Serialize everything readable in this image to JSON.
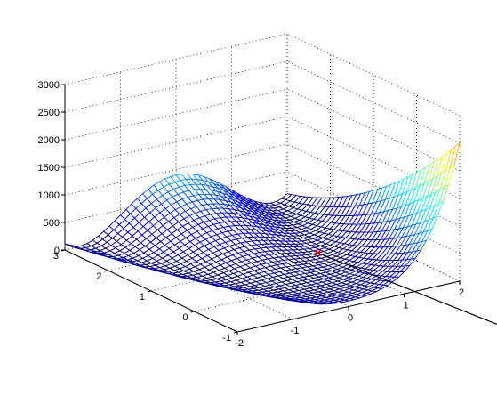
{
  "chart_data": {
    "type": "surface",
    "surface": "mesh",
    "function": "z = 100*(y - x^2)^2 + (1 - x)^2",
    "x": {
      "min": -2,
      "max": 2,
      "ticks": [
        "-2",
        "-1",
        "0",
        "1",
        "2"
      ]
    },
    "y": {
      "min": -1,
      "max": 3,
      "ticks": [
        "-1",
        "0",
        "1",
        "2",
        "3"
      ]
    },
    "z": {
      "min": 0,
      "max": 3000,
      "ticks": [
        "0",
        "500",
        "1000",
        "1500",
        "2000",
        "2500",
        "3000"
      ]
    },
    "grid": true,
    "colormap": "jet",
    "color_range": [
      0,
      3000
    ],
    "mesh_divisions": 40,
    "marker": {
      "x": 1,
      "y": 1,
      "z": 0,
      "color": "#ff0000"
    },
    "annotation_line": {
      "from": [
        1,
        1,
        0
      ],
      "to_x": 1.42,
      "to_y": -3.4,
      "to_z": 0,
      "color": "#000000"
    },
    "view": {
      "azimuth": -37.5,
      "elevation": 30
    }
  }
}
